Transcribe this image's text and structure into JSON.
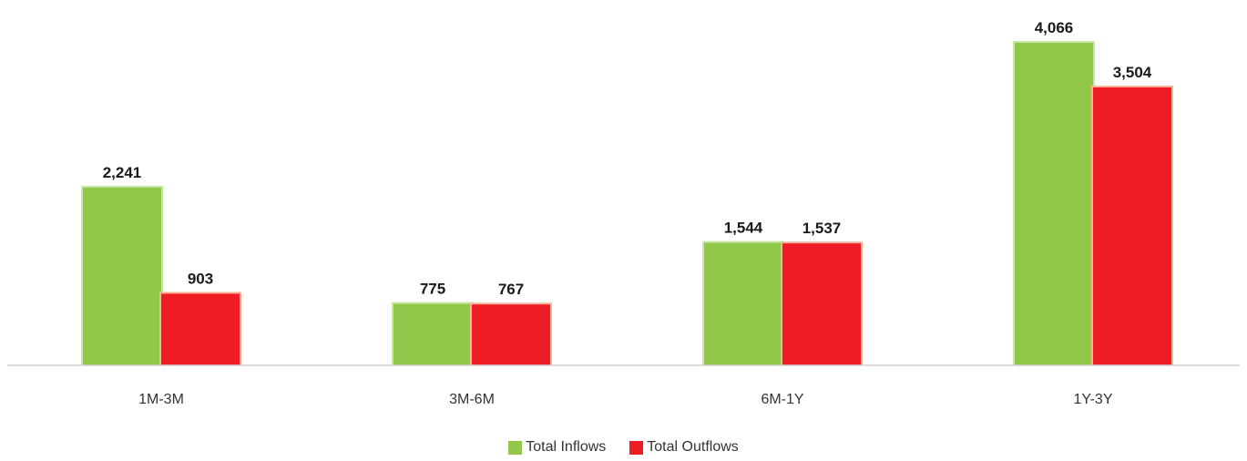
{
  "chart_data": {
    "type": "bar",
    "categories": [
      "1M-3M",
      "3M-6M",
      "6M-1Y",
      "1Y-3Y"
    ],
    "series": [
      {
        "name": "Total Inflows",
        "values": [
          2241,
          775,
          1544,
          4066
        ],
        "labels": [
          "2,241",
          "775",
          "1,544",
          "4,066"
        ],
        "color": "#92C84A"
      },
      {
        "name": "Total Outflows",
        "values": [
          903,
          767,
          1537,
          3504
        ],
        "labels": [
          "903",
          "767",
          "1,537",
          "3,504"
        ],
        "color": "#EE1C25"
      }
    ],
    "ylim": [
      0,
      4500
    ],
    "grid": false,
    "legend_position": "bottom-center"
  }
}
